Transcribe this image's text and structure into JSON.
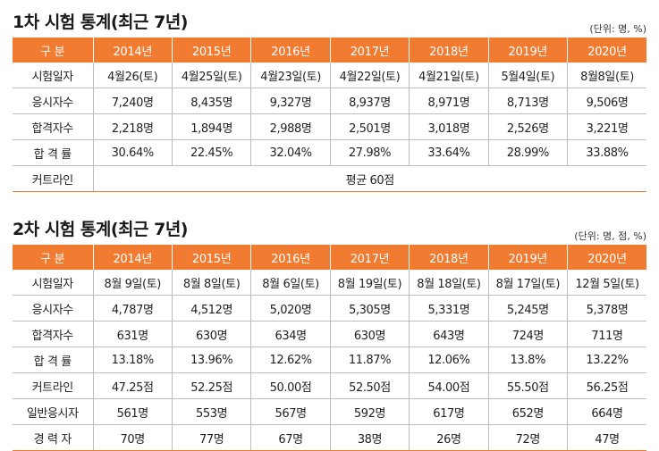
{
  "first": {
    "title": "1차 시험 통계(최근 7년)",
    "unit": "(단위: 명, %)",
    "header": [
      "구 분",
      "2014년",
      "2015년",
      "2016년",
      "2017년",
      "2018년",
      "2019년",
      "2020년"
    ],
    "rows": [
      [
        "시험일자",
        "4월26(토)",
        "4월25일(토)",
        "4월23일(토)",
        "4월22일(토)",
        "4월21일(토)",
        "5월4일(토)",
        "8월8일(토)"
      ],
      [
        "응시자수",
        "7,240명",
        "8,435명",
        "9,327명",
        "8,937명",
        "8,971명",
        "8,713명",
        "9,506명"
      ],
      [
        "합격자수",
        "2,218명",
        "1,894명",
        "2,988명",
        "2,501명",
        "3,018명",
        "2,526명",
        "3,221명"
      ],
      [
        "합 격 률",
        "30.64%",
        "22.45%",
        "32.04%",
        "27.98%",
        "33.64%",
        "28.99%",
        "33.88%"
      ]
    ],
    "cutline_label": "커트라인",
    "cutline_value": "평균 60점"
  },
  "second": {
    "title": "2차 시험 통계(최근 7년)",
    "unit": "(단위: 명, 점, %)",
    "header": [
      "구 분",
      "2014년",
      "2015년",
      "2016년",
      "2017년",
      "2018년",
      "2019년",
      "2020년"
    ],
    "rows": [
      [
        "시험일자",
        "8월 9일(토)",
        "8월 8일(토)",
        "8월 6일(토)",
        "8월 19일(토)",
        "8월 18일(토)",
        "8월 17일(토)",
        "12월 5일(토)"
      ],
      [
        "응시자수",
        "4,787명",
        "4,512명",
        "5,020명",
        "5,305명",
        "5,331명",
        "5,245명",
        "5,378명"
      ],
      [
        "합격자수",
        "631명",
        "630명",
        "634명",
        "630명",
        "643명",
        "724명",
        "711명"
      ],
      [
        "합 격 률",
        "13.18%",
        "13.96%",
        "12.62%",
        "11.87%",
        "12.06%",
        "13.8%",
        "13.22%"
      ],
      [
        "커트라인",
        "47.25점",
        "52.25점",
        "50.00점",
        "52.50점",
        "54.00점",
        "55.50점",
        "56.25점"
      ],
      [
        "일반응시자",
        "561명",
        "553명",
        "567명",
        "592명",
        "617명",
        "652명",
        "664명"
      ],
      [
        "경 력 자",
        "70명",
        "77명",
        "67명",
        "38명",
        "26명",
        "72명",
        "47명"
      ]
    ]
  }
}
